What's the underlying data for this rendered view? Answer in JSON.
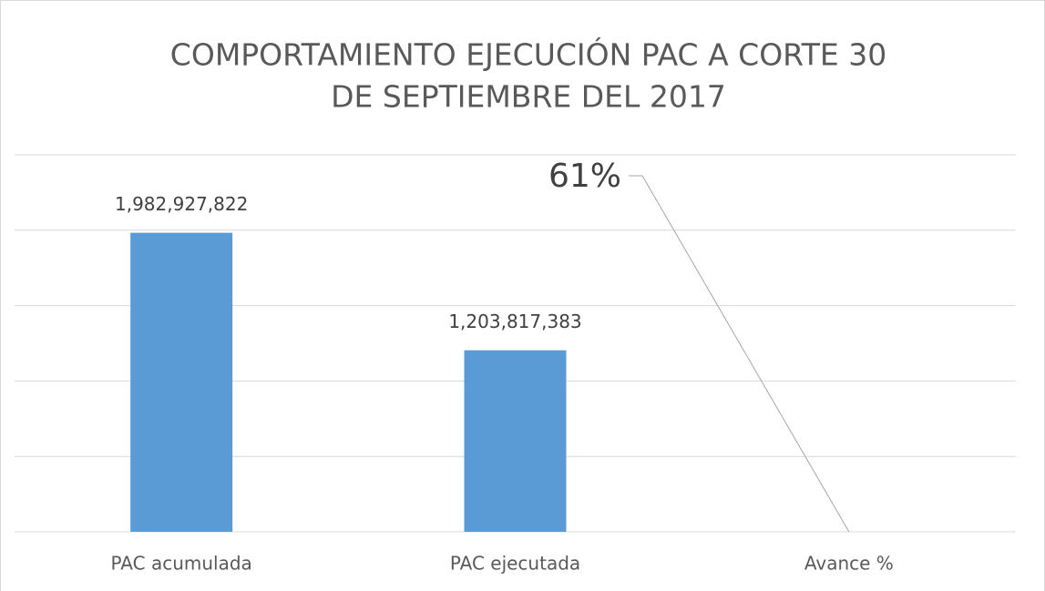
{
  "chart_data": {
    "type": "bar",
    "title": [
      "COMPORTAMIENTO EJECUCIÓN PAC  A CORTE 30",
      "DE SEPTIEMBRE DEL 2017"
    ],
    "categories": [
      "PAC acumulada",
      "PAC ejecutada",
      "Avance %"
    ],
    "values": [
      1982927822,
      1203817383,
      61
    ],
    "value_labels": [
      "1,982,927,822",
      "1,203,817,383",
      "61%"
    ],
    "color": "#5b9bd5",
    "ylim": [
      0,
      2500000000
    ],
    "yticks": [
      0,
      500000000,
      1000000000,
      1500000000,
      2000000000,
      2500000000
    ],
    "grid": true
  }
}
